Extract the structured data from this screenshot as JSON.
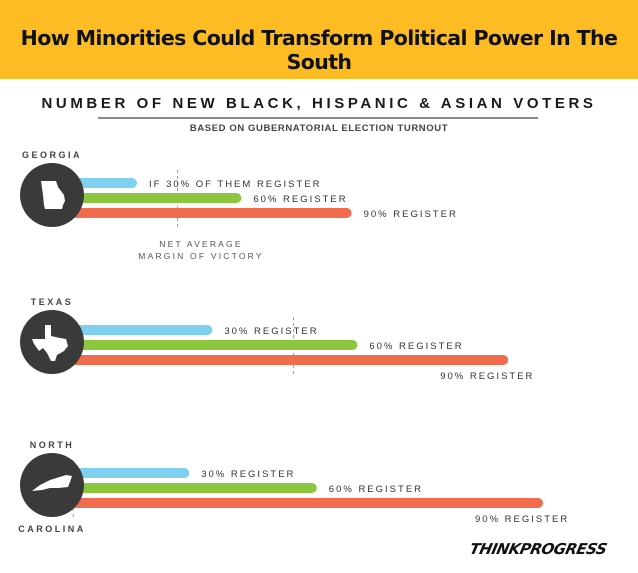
{
  "header": {
    "title": "How Minorities Could Transform Political Power In The South",
    "banner_color": "#fdbc24"
  },
  "chart_data": {
    "type": "bar",
    "title": "NUMBER OF NEW BLACK, HISPANIC & ASIAN VOTERS",
    "subtitle": "BASED ON GUBERNATORIAL ELECTION TURNOUT",
    "units": "relative bar length (scale unlabeled)",
    "reference_line": {
      "label_line1": "NET AVERAGE",
      "label_line2": "MARGIN OF VICTORY"
    },
    "colors": {
      "30%": "#7fd0f0",
      "60%": "#8cc63f",
      "90%": "#f06c4c",
      "state_circle": "#3a3a3a"
    },
    "groups": [
      {
        "state": "GEORGIA",
        "state_line2": "",
        "icon": "georgia-shape-icon",
        "margin_of_victory": 0.22,
        "series": [
          {
            "name": "30%",
            "label": "IF 30% OF THEM REGISTER",
            "value": 0.15
          },
          {
            "name": "60%",
            "label": "60% REGISTER",
            "value": 0.33
          },
          {
            "name": "90%",
            "label": "90% REGISTER",
            "value": 0.52
          }
        ]
      },
      {
        "state": "TEXAS",
        "state_line2": "",
        "icon": "texas-shape-icon",
        "margin_of_victory": 0.42,
        "series": [
          {
            "name": "30%",
            "label": "30% REGISTER",
            "value": 0.28
          },
          {
            "name": "60%",
            "label": "60% REGISTER",
            "value": 0.53
          },
          {
            "name": "90%",
            "label": "90% REGISTER",
            "value": 0.79
          }
        ]
      },
      {
        "state": "NORTH",
        "state_line2": "CAROLINA",
        "icon": "north-carolina-shape-icon",
        "margin_of_victory": 0.04,
        "series": [
          {
            "name": "30%",
            "label": "30% REGISTER",
            "value": 0.24
          },
          {
            "name": "60%",
            "label": "60% REGISTER",
            "value": 0.46
          },
          {
            "name": "90%",
            "label": "90% REGISTER",
            "value": 0.85
          }
        ]
      }
    ]
  },
  "footer": {
    "logo": "THINKPROGRESS"
  }
}
